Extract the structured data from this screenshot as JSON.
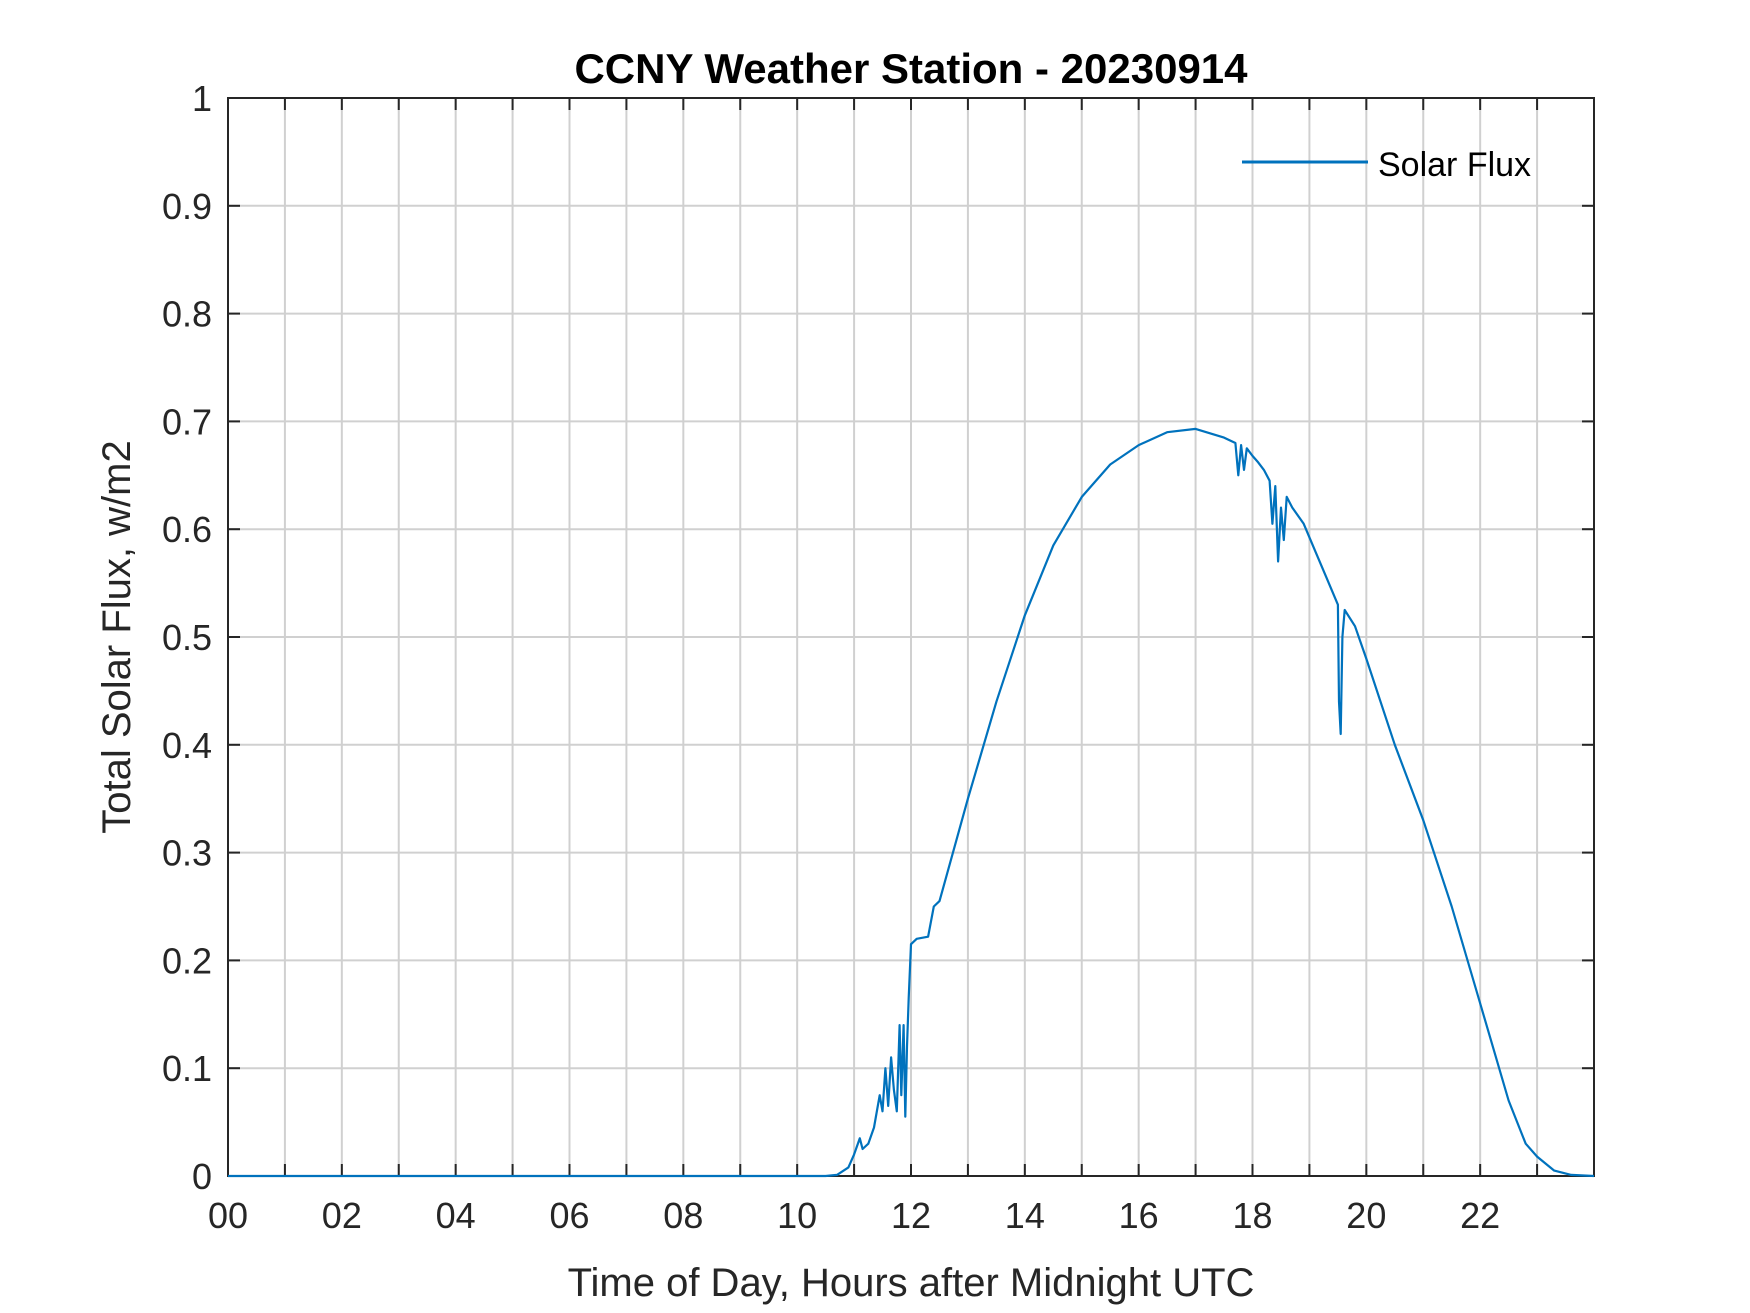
{
  "colors": {
    "series": "#0072bd",
    "axes": "#262626",
    "grid": "#d0d0d0",
    "background": "#ffffff"
  },
  "chart_data": {
    "type": "line",
    "title": "CCNY Weather Station - 20230914",
    "xlabel": "Time of Day, Hours after Midnight UTC",
    "ylabel": "Total Solar Flux, w/m2",
    "xlim": [
      0,
      24
    ],
    "ylim": [
      0,
      1
    ],
    "x_ticks": [
      0,
      2,
      4,
      6,
      8,
      10,
      12,
      14,
      16,
      18,
      20,
      22
    ],
    "x_tick_labels": [
      "00",
      "02",
      "04",
      "06",
      "08",
      "10",
      "12",
      "14",
      "16",
      "18",
      "20",
      "22"
    ],
    "y_ticks": [
      0,
      0.1,
      0.2,
      0.3,
      0.4,
      0.5,
      0.6,
      0.7,
      0.8,
      0.9,
      1
    ],
    "y_tick_labels": [
      "0",
      "0.1",
      "0.2",
      "0.3",
      "0.4",
      "0.5",
      "0.6",
      "0.7",
      "0.8",
      "0.9",
      "1"
    ],
    "grid": true,
    "legend": {
      "position": "top-right",
      "entries": [
        "Solar Flux"
      ]
    },
    "series": [
      {
        "name": "Solar Flux",
        "color": "#0072bd",
        "points": [
          [
            0,
            0
          ],
          [
            10.5,
            0
          ],
          [
            10.7,
            0.001
          ],
          [
            10.9,
            0.008
          ],
          [
            11.0,
            0.02
          ],
          [
            11.1,
            0.035
          ],
          [
            11.15,
            0.025
          ],
          [
            11.25,
            0.03
          ],
          [
            11.35,
            0.045
          ],
          [
            11.45,
            0.075
          ],
          [
            11.5,
            0.06
          ],
          [
            11.55,
            0.1
          ],
          [
            11.6,
            0.065
          ],
          [
            11.65,
            0.11
          ],
          [
            11.7,
            0.08
          ],
          [
            11.75,
            0.06
          ],
          [
            11.8,
            0.14
          ],
          [
            11.83,
            0.075
          ],
          [
            11.87,
            0.14
          ],
          [
            11.9,
            0.055
          ],
          [
            11.93,
            0.12
          ],
          [
            11.96,
            0.165
          ],
          [
            12.0,
            0.215
          ],
          [
            12.1,
            0.22
          ],
          [
            12.3,
            0.222
          ],
          [
            12.4,
            0.25
          ],
          [
            12.5,
            0.255
          ],
          [
            13.0,
            0.35
          ],
          [
            13.5,
            0.44
          ],
          [
            14.0,
            0.52
          ],
          [
            14.5,
            0.585
          ],
          [
            15.0,
            0.63
          ],
          [
            15.5,
            0.66
          ],
          [
            16.0,
            0.678
          ],
          [
            16.5,
            0.69
          ],
          [
            17.0,
            0.693
          ],
          [
            17.5,
            0.685
          ],
          [
            17.7,
            0.68
          ],
          [
            17.75,
            0.65
          ],
          [
            17.8,
            0.678
          ],
          [
            17.85,
            0.655
          ],
          [
            17.9,
            0.675
          ],
          [
            18.0,
            0.668
          ],
          [
            18.1,
            0.662
          ],
          [
            18.2,
            0.655
          ],
          [
            18.3,
            0.645
          ],
          [
            18.35,
            0.605
          ],
          [
            18.4,
            0.64
          ],
          [
            18.45,
            0.57
          ],
          [
            18.5,
            0.62
          ],
          [
            18.55,
            0.59
          ],
          [
            18.6,
            0.63
          ],
          [
            18.7,
            0.62
          ],
          [
            18.9,
            0.605
          ],
          [
            19.1,
            0.58
          ],
          [
            19.3,
            0.555
          ],
          [
            19.5,
            0.53
          ],
          [
            19.52,
            0.44
          ],
          [
            19.55,
            0.41
          ],
          [
            19.58,
            0.5
          ],
          [
            19.62,
            0.525
          ],
          [
            19.8,
            0.51
          ],
          [
            20.0,
            0.48
          ],
          [
            20.5,
            0.4
          ],
          [
            21.0,
            0.33
          ],
          [
            21.5,
            0.25
          ],
          [
            22.0,
            0.16
          ],
          [
            22.5,
            0.07
          ],
          [
            22.8,
            0.03
          ],
          [
            23.0,
            0.018
          ],
          [
            23.3,
            0.005
          ],
          [
            23.6,
            0.001
          ],
          [
            24.0,
            0
          ]
        ]
      }
    ]
  }
}
